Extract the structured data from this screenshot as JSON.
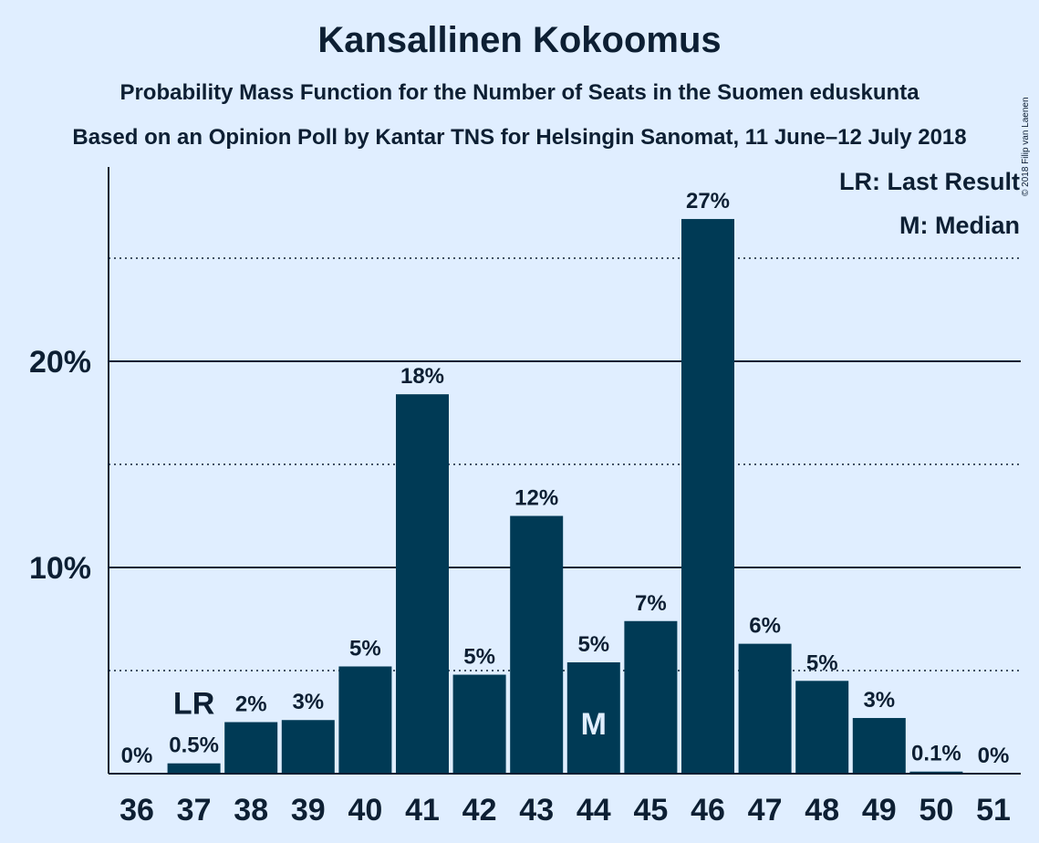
{
  "title": "Kansallinen Kokoomus",
  "subtitle1": "Probability Mass Function for the Number of Seats in the Suomen eduskunta",
  "subtitle2": "Based on an Opinion Poll by Kantar TNS for Helsingin Sanomat, 11 June–12 July 2018",
  "copyright": "© 2018 Filip van Laenen",
  "legend": {
    "last_result": "LR: Last Result",
    "median": "M: Median"
  },
  "colors": {
    "background": "#e0eeff",
    "bar": "#003a55",
    "text": "#0d1f33"
  },
  "chart_data": {
    "type": "bar",
    "categories": [
      "36",
      "37",
      "38",
      "39",
      "40",
      "41",
      "42",
      "43",
      "44",
      "45",
      "46",
      "47",
      "48",
      "49",
      "50",
      "51"
    ],
    "values": [
      0,
      0.5,
      2.5,
      2.6,
      5.2,
      18.4,
      4.8,
      12.5,
      5.4,
      7.4,
      26.9,
      6.3,
      4.5,
      2.7,
      0.1,
      0
    ],
    "value_labels": [
      "0%",
      "0.5%",
      "2%",
      "3%",
      "5%",
      "18%",
      "5%",
      "12%",
      "5%",
      "7%",
      "27%",
      "6%",
      "5%",
      "3%",
      "0.1%",
      "0%"
    ],
    "yticks": [
      {
        "value": 10,
        "label": "10%"
      },
      {
        "value": 20,
        "label": "20%"
      }
    ],
    "minor_gridlines": [
      5,
      15,
      25
    ],
    "ylim": [
      0,
      29.4
    ],
    "last_result": {
      "category": "37",
      "label": "LR"
    },
    "median": {
      "category": "44",
      "label": "M"
    },
    "grid": true,
    "legend_position": "top-right"
  }
}
